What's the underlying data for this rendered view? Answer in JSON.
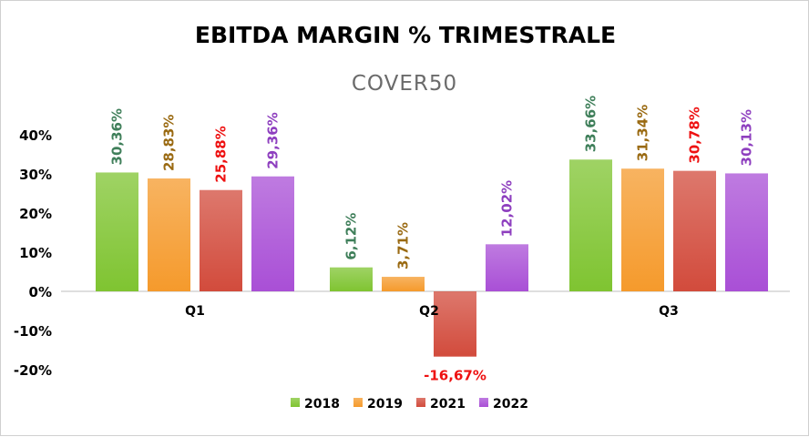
{
  "chart_data": {
    "type": "bar",
    "title": "EBITDA MARGIN % TRIMESTRALE",
    "watermark": "COVER50",
    "categories": [
      "Q1",
      "Q2",
      "Q3"
    ],
    "series": [
      {
        "name": "2018",
        "values": [
          30.36,
          6.12,
          33.66
        ],
        "labels": [
          "30,36%",
          "6,12%",
          "33,66%"
        ],
        "color": "#7fc431",
        "label_color": "#3f7f5a"
      },
      {
        "name": "2019",
        "values": [
          28.83,
          3.71,
          31.34
        ],
        "labels": [
          "28,83%",
          "3,71%",
          "31,34%"
        ],
        "color": "#f59a2c",
        "label_color": "#9a6a12"
      },
      {
        "name": "2021",
        "values": [
          25.88,
          -16.67,
          30.78
        ],
        "labels": [
          "25,88%",
          "-16,67%",
          "30,78%"
        ],
        "color": "#d24b3c",
        "label_color": "#ee1111"
      },
      {
        "name": "2022",
        "values": [
          29.36,
          12.02,
          30.13
        ],
        "labels": [
          "29,36%",
          "12,02%",
          "30,13%"
        ],
        "color": "#a94fd6",
        "label_color": "#8e3fbf"
      }
    ],
    "ylim": [
      -20,
      40
    ],
    "yticks": [
      40,
      30,
      20,
      10,
      0,
      -10,
      -20
    ],
    "ytick_labels": [
      "40%",
      "30%",
      "20%",
      "10%",
      "0%",
      "-10%",
      "-20%"
    ],
    "legend": "bottom",
    "grid": false
  }
}
